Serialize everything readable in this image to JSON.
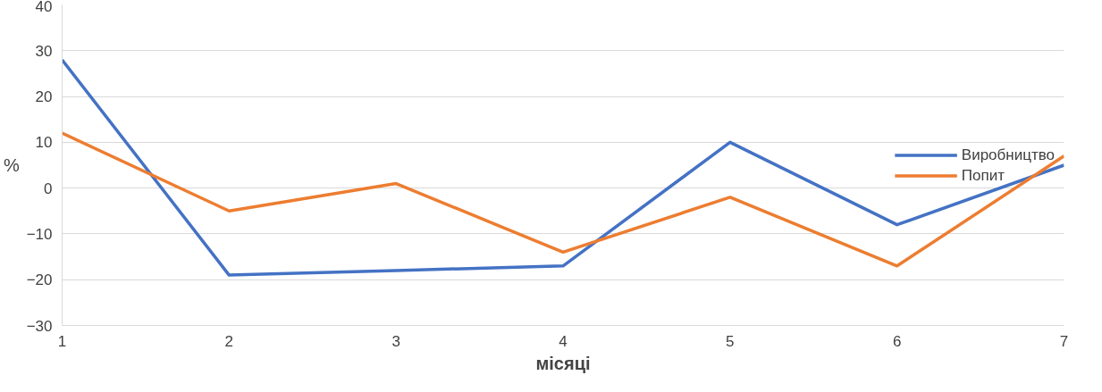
{
  "chart_data": {
    "type": "line",
    "xlabel": "місяці",
    "ylabel": "%",
    "x": [
      1,
      2,
      3,
      4,
      5,
      6,
      7
    ],
    "series": [
      {
        "name": "Виробництво",
        "color": "#4472c4",
        "values": [
          28,
          -19,
          -18,
          -17,
          10,
          -8,
          5
        ]
      },
      {
        "name": "Попит",
        "color": "#ed7d31",
        "values": [
          12,
          -5,
          1,
          -14,
          -2,
          -17,
          7
        ]
      }
    ],
    "xlim": [
      1,
      7
    ],
    "xticks": [
      1,
      2,
      3,
      4,
      5,
      6,
      7
    ],
    "ylim": [
      -30,
      40
    ],
    "yticks": [
      -30,
      -20,
      -10,
      0,
      10,
      20,
      30,
      40
    ],
    "grid": "y",
    "legend": "right",
    "marker": "none",
    "line_style": "solid"
  }
}
